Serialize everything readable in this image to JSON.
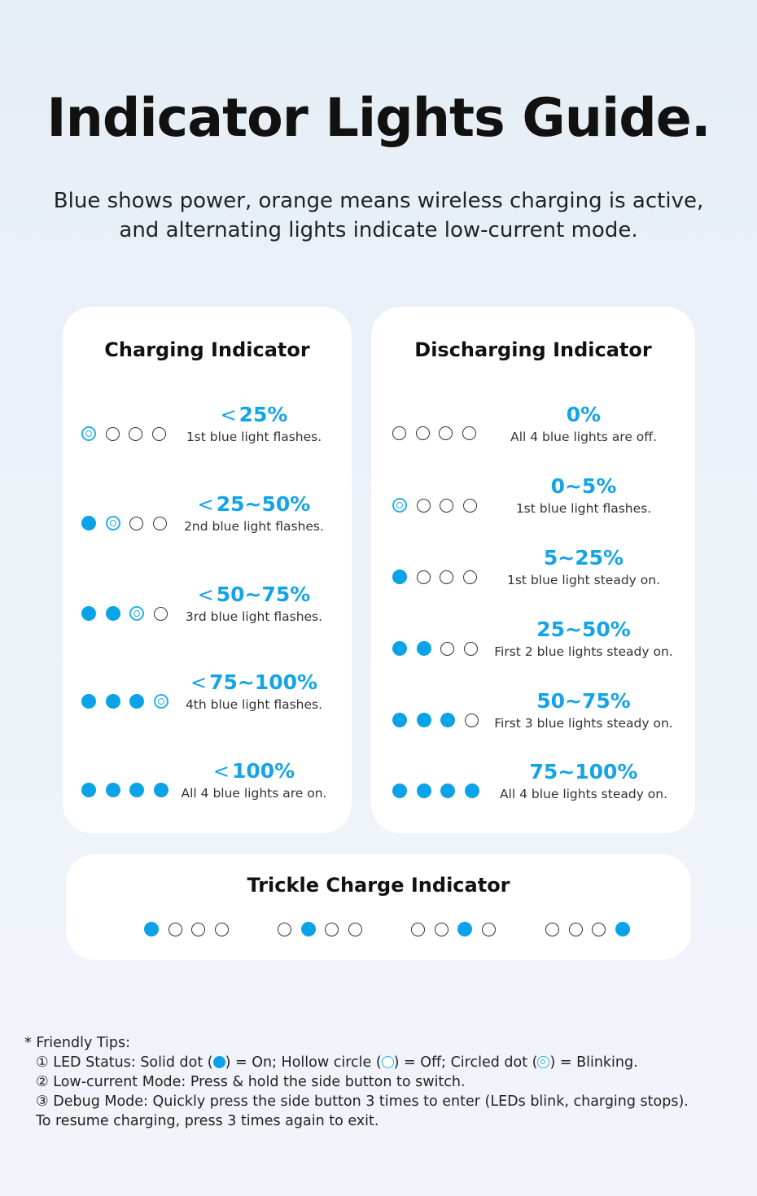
{
  "title": "Indicator Lights Guide.",
  "subtitle": {
    "line1": "Blue shows power, orange means wireless charging is active,",
    "line2": "and alternating lights indicate low-current mode."
  },
  "charging": {
    "title": "Charging Indicator",
    "rows": [
      {
        "prefix": "<",
        "value": "25%",
        "desc": "1st blue light flashes.",
        "lights": [
          "blink",
          "hollow",
          "hollow",
          "hollow"
        ]
      },
      {
        "prefix": "<",
        "value": "25~50%",
        "desc": "2nd blue light flashes.",
        "lights": [
          "solid",
          "blink",
          "hollow",
          "hollow"
        ]
      },
      {
        "prefix": "<",
        "value": "50~75%",
        "desc": "3rd blue light flashes.",
        "lights": [
          "solid",
          "solid",
          "blink",
          "hollow"
        ]
      },
      {
        "prefix": "<",
        "value": "75~100%",
        "desc": "4th blue light flashes.",
        "lights": [
          "solid",
          "solid",
          "solid",
          "blink"
        ]
      },
      {
        "prefix": "<",
        "value": "100%",
        "desc": "All 4 blue lights are on.",
        "lights": [
          "solid",
          "solid",
          "solid",
          "solid"
        ]
      }
    ]
  },
  "discharging": {
    "title": "Discharging Indicator",
    "rows": [
      {
        "value": "0%",
        "desc": "All 4 blue lights are off.",
        "lights": [
          "hollow",
          "hollow",
          "hollow",
          "hollow"
        ]
      },
      {
        "value": "0~5%",
        "desc": "1st blue light flashes.",
        "lights": [
          "blink",
          "hollow",
          "hollow",
          "hollow"
        ]
      },
      {
        "value": "5~25%",
        "desc": "1st blue light steady on.",
        "lights": [
          "solid",
          "hollow",
          "hollow",
          "hollow"
        ]
      },
      {
        "value": "25~50%",
        "desc": "First 2 blue lights steady on.",
        "lights": [
          "solid",
          "solid",
          "hollow",
          "hollow"
        ]
      },
      {
        "value": "50~75%",
        "desc": "First 3 blue lights steady on.",
        "lights": [
          "solid",
          "solid",
          "solid",
          "hollow"
        ]
      },
      {
        "value": "75~100%",
        "desc": "All 4 blue lights steady on.",
        "lights": [
          "solid",
          "solid",
          "solid",
          "solid"
        ]
      }
    ]
  },
  "trickle": {
    "title": "Trickle Charge Indicator",
    "groups": [
      [
        "solid",
        "hollow",
        "hollow",
        "hollow"
      ],
      [
        "hollow",
        "solid",
        "hollow",
        "hollow"
      ],
      [
        "hollow",
        "hollow",
        "solid",
        "hollow"
      ],
      [
        "hollow",
        "hollow",
        "hollow",
        "solid"
      ]
    ]
  },
  "tips": {
    "header": "* Friendly Tips:",
    "tip1": {
      "a": "① LED Status: Solid dot (",
      "b": ") = On; Hollow circle (",
      "c": ") = Off; Circled dot (",
      "d": ") = Blinking."
    },
    "tip2": "② Low-current Mode: Press & hold the side button to switch.",
    "tip3": "③ Debug Mode: Quickly press the side button 3 times to enter (LEDs blink, charging stops).",
    "tip4": "To resume charging, press 3 times again to exit."
  },
  "colors": {
    "accent": "#14a4e6",
    "solid_dot": "#0aa3e8",
    "card": "#ffffff",
    "background": "#e9f0f7"
  }
}
